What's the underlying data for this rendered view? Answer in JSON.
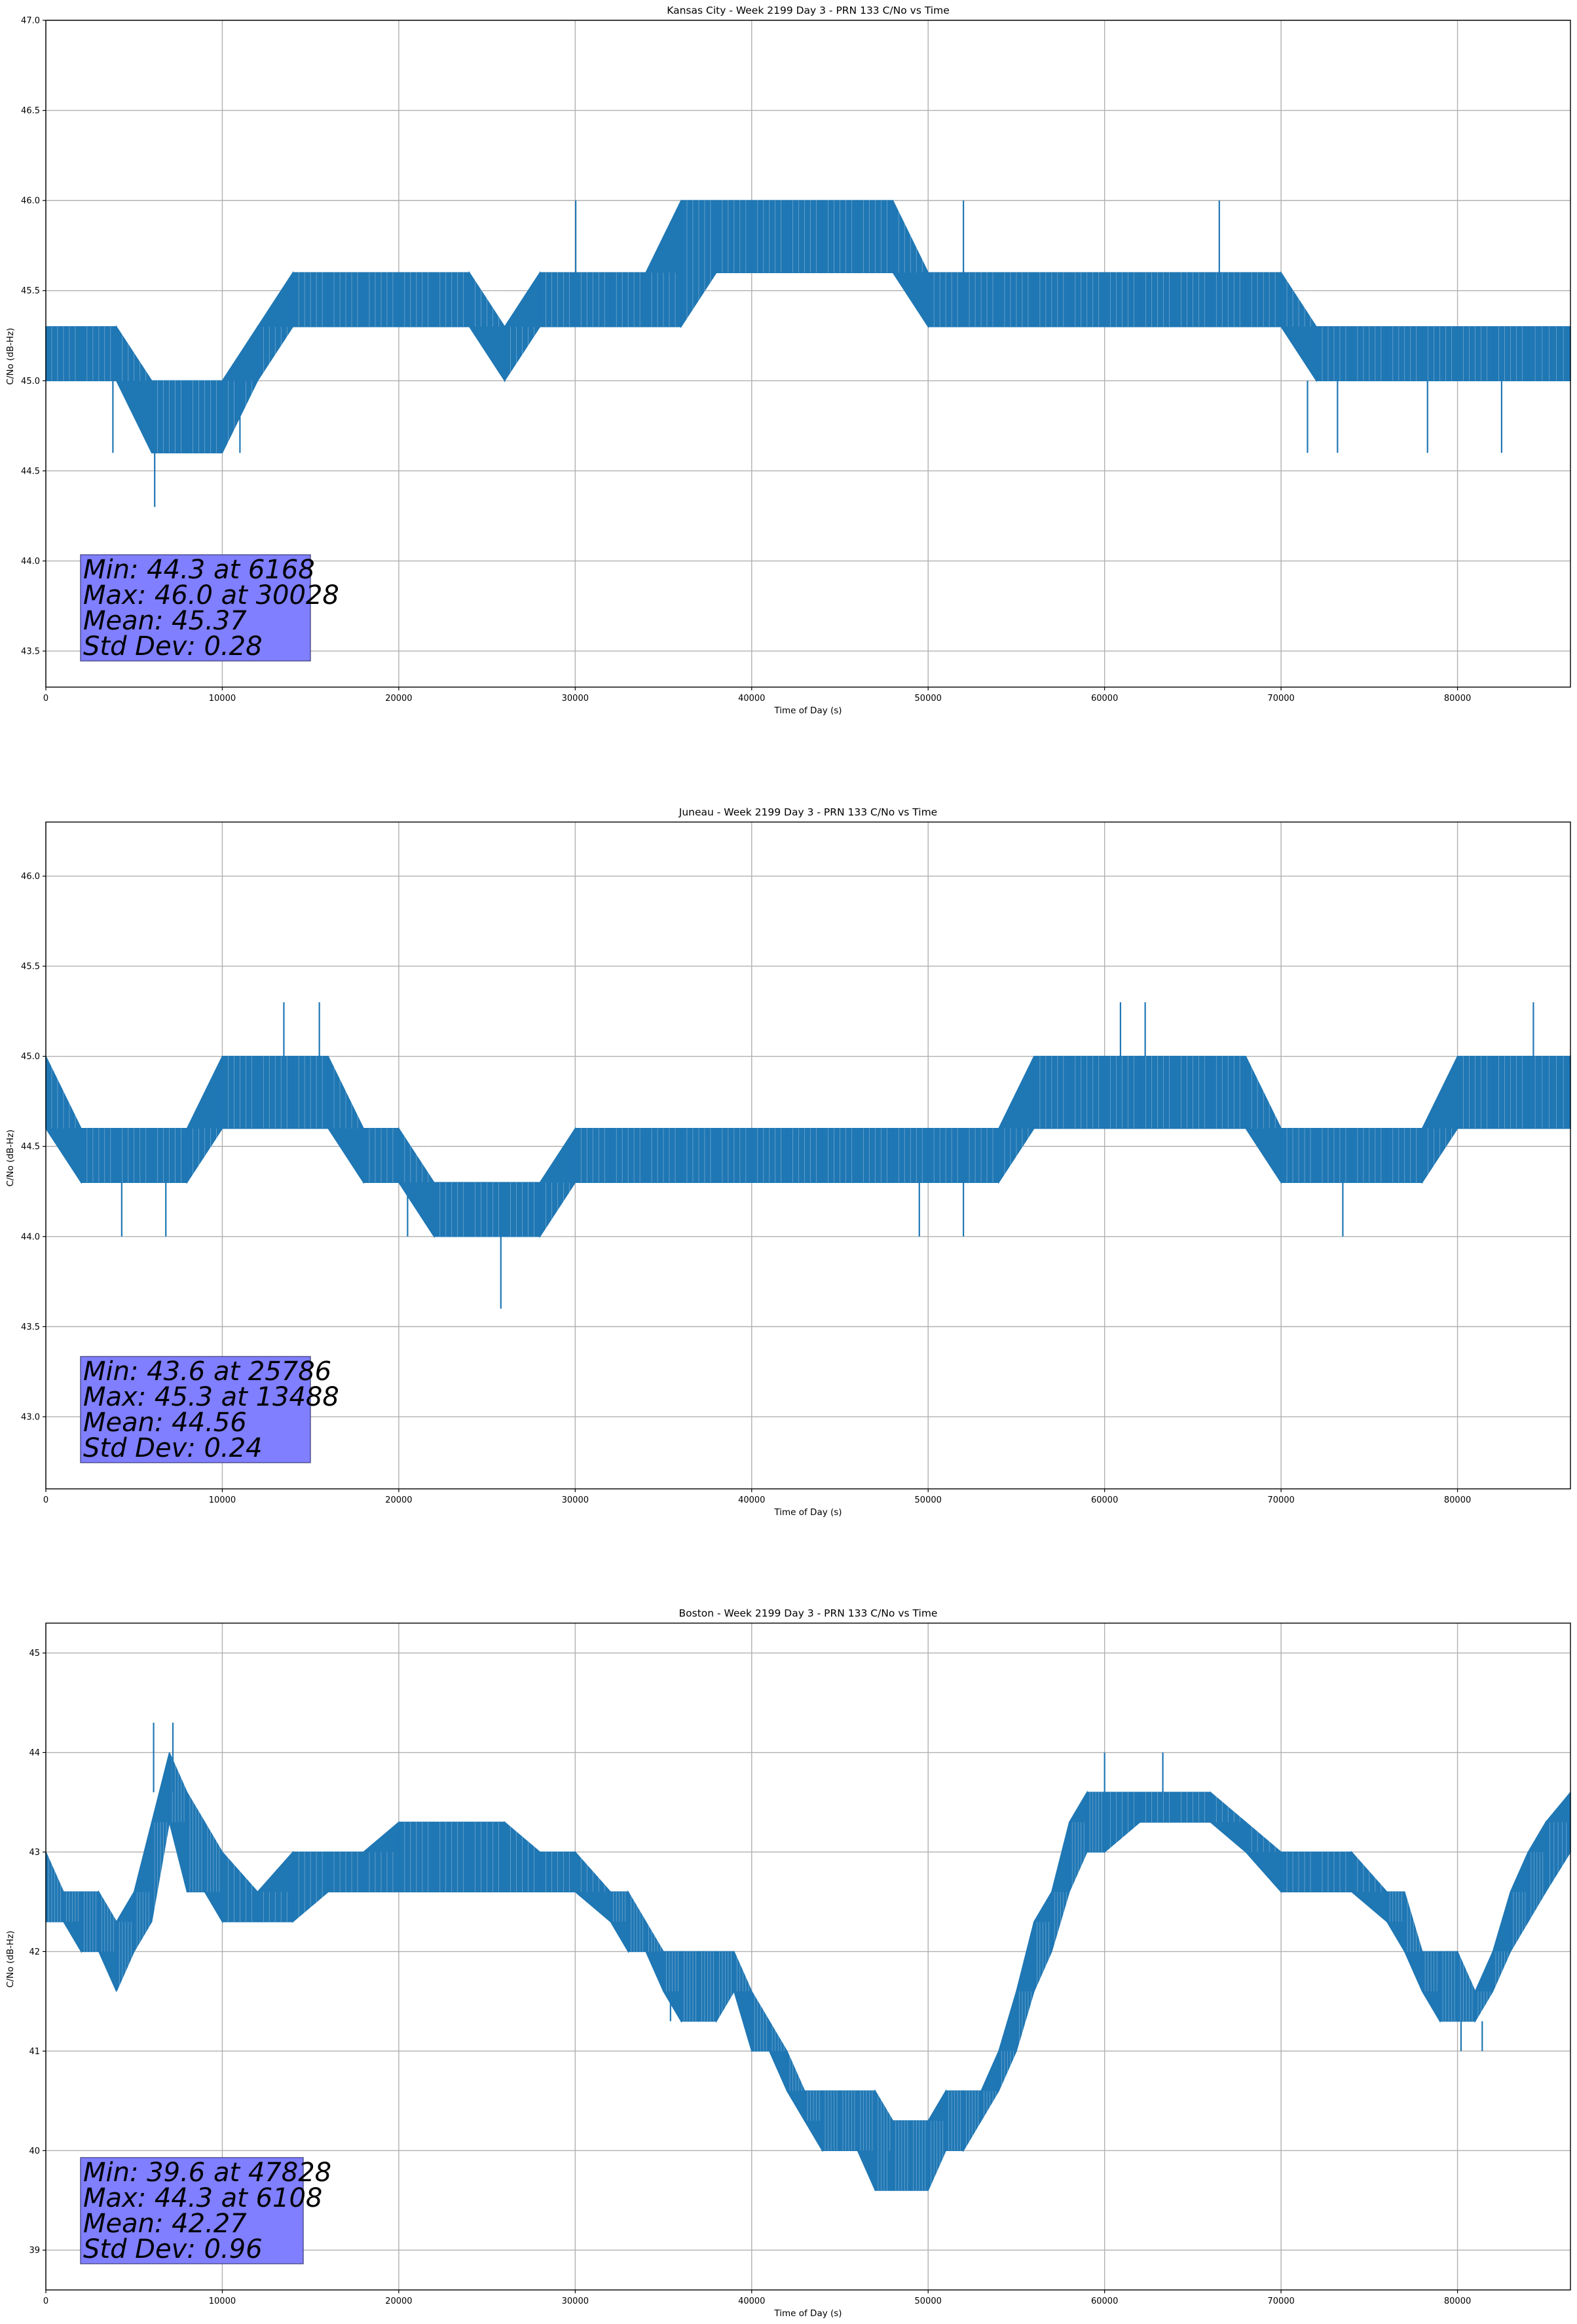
{
  "chart_data": [
    {
      "type": "line",
      "title": "Kansas City - Week 2199 Day 3 - PRN 133 C/No vs Time",
      "xlabel": "Time of Day (s)",
      "ylabel": "C/No (dB-Hz)",
      "xlim": [
        0,
        86400
      ],
      "ylim": [
        43.3,
        47.0
      ],
      "xticks": [
        0,
        10000,
        20000,
        30000,
        40000,
        50000,
        60000,
        70000,
        80000
      ],
      "yticks": [
        "43.5",
        "44.0",
        "44.5",
        "45.0",
        "45.5",
        "46.0",
        "46.5",
        "47.0"
      ],
      "grid": true,
      "color": "#1f77b4",
      "series": [
        {
          "name": "C/No",
          "x": [
            0,
            2000,
            4000,
            6000,
            8000,
            10000,
            12000,
            14000,
            16000,
            18000,
            20000,
            22000,
            24000,
            26000,
            28000,
            30000,
            32000,
            34000,
            36000,
            38000,
            40000,
            42000,
            44000,
            46000,
            48000,
            50000,
            52000,
            54000,
            56000,
            58000,
            60000,
            62000,
            64000,
            66000,
            68000,
            70000,
            72000,
            74000,
            76000,
            78000,
            80000,
            82000,
            84000,
            86400
          ],
          "base": [
            45.0,
            45.0,
            45.0,
            44.6,
            44.6,
            44.6,
            45.0,
            45.3,
            45.3,
            45.3,
            45.3,
            45.3,
            45.3,
            45.0,
            45.3,
            45.3,
            45.3,
            45.3,
            45.3,
            45.6,
            45.6,
            45.6,
            45.6,
            45.6,
            45.6,
            45.3,
            45.3,
            45.3,
            45.3,
            45.3,
            45.3,
            45.3,
            45.3,
            45.3,
            45.3,
            45.3,
            45.0,
            45.0,
            45.0,
            45.0,
            45.0,
            45.0,
            45.0,
            45.0
          ],
          "top": [
            45.3,
            45.3,
            45.3,
            45.0,
            45.0,
            45.0,
            45.3,
            45.6,
            45.6,
            45.6,
            45.6,
            45.6,
            45.6,
            45.3,
            45.6,
            45.6,
            45.6,
            45.6,
            46.0,
            46.0,
            46.0,
            46.0,
            46.0,
            46.0,
            46.0,
            45.6,
            45.6,
            45.6,
            45.6,
            45.6,
            45.6,
            45.6,
            45.6,
            45.6,
            45.6,
            45.6,
            45.3,
            45.3,
            45.3,
            45.3,
            45.3,
            45.3,
            45.3,
            45.3
          ]
        }
      ],
      "spikes": [
        {
          "x": 6168,
          "low": 44.3,
          "high": 44.6
        },
        {
          "x": 3800,
          "low": 44.6,
          "high": 45.0
        },
        {
          "x": 11000,
          "low": 44.6,
          "high": 45.0
        },
        {
          "x": 30028,
          "low": 45.6,
          "high": 46.0
        },
        {
          "x": 52000,
          "low": 45.6,
          "high": 46.0
        },
        {
          "x": 66500,
          "low": 45.6,
          "high": 46.0
        },
        {
          "x": 71500,
          "low": 44.6,
          "high": 45.0
        },
        {
          "x": 73200,
          "low": 44.6,
          "high": 45.0
        },
        {
          "x": 78300,
          "low": 44.6,
          "high": 45.0
        },
        {
          "x": 82500,
          "low": 44.6,
          "high": 45.0
        }
      ],
      "stats": {
        "min": "Min: 44.3 at 6168",
        "max": "Max: 46.0 at 30028",
        "mean": "Mean: 45.37",
        "std": "Std Dev: 0.28"
      }
    },
    {
      "type": "line",
      "title": "Juneau - Week 2199 Day 3 - PRN 133 C/No vs Time",
      "xlabel": "Time of Day (s)",
      "ylabel": "C/No (dB-Hz)",
      "xlim": [
        0,
        86400
      ],
      "ylim": [
        42.6,
        46.3
      ],
      "xticks": [
        0,
        10000,
        20000,
        30000,
        40000,
        50000,
        60000,
        70000,
        80000
      ],
      "yticks": [
        "43.0",
        "43.5",
        "44.0",
        "44.5",
        "45.0",
        "45.5",
        "46.0"
      ],
      "grid": true,
      "color": "#1f77b4",
      "series": [
        {
          "name": "C/No",
          "x": [
            0,
            2000,
            4000,
            6000,
            8000,
            10000,
            12000,
            14000,
            16000,
            18000,
            20000,
            22000,
            24000,
            26000,
            28000,
            30000,
            32000,
            34000,
            36000,
            38000,
            40000,
            42000,
            44000,
            46000,
            48000,
            50000,
            52000,
            54000,
            56000,
            58000,
            60000,
            62000,
            64000,
            66000,
            68000,
            70000,
            72000,
            74000,
            76000,
            78000,
            80000,
            82000,
            84000,
            86400
          ],
          "base": [
            44.6,
            44.3,
            44.3,
            44.3,
            44.3,
            44.6,
            44.6,
            44.6,
            44.6,
            44.3,
            44.3,
            44.0,
            44.0,
            44.0,
            44.0,
            44.3,
            44.3,
            44.3,
            44.3,
            44.3,
            44.3,
            44.3,
            44.3,
            44.3,
            44.3,
            44.3,
            44.3,
            44.3,
            44.6,
            44.6,
            44.6,
            44.6,
            44.6,
            44.6,
            44.6,
            44.3,
            44.3,
            44.3,
            44.3,
            44.3,
            44.6,
            44.6,
            44.6,
            44.6
          ],
          "top": [
            45.0,
            44.6,
            44.6,
            44.6,
            44.6,
            45.0,
            45.0,
            45.0,
            45.0,
            44.6,
            44.6,
            44.3,
            44.3,
            44.3,
            44.3,
            44.6,
            44.6,
            44.6,
            44.6,
            44.6,
            44.6,
            44.6,
            44.6,
            44.6,
            44.6,
            44.6,
            44.6,
            44.6,
            45.0,
            45.0,
            45.0,
            45.0,
            45.0,
            45.0,
            45.0,
            44.6,
            44.6,
            44.6,
            44.6,
            44.6,
            45.0,
            45.0,
            45.0,
            45.0
          ]
        }
      ],
      "spikes": [
        {
          "x": 25786,
          "low": 43.6,
          "high": 44.0
        },
        {
          "x": 13488,
          "low": 45.0,
          "high": 45.3
        },
        {
          "x": 15500,
          "low": 45.0,
          "high": 45.3
        },
        {
          "x": 60900,
          "low": 45.0,
          "high": 45.3
        },
        {
          "x": 62300,
          "low": 45.0,
          "high": 45.3
        },
        {
          "x": 84300,
          "low": 45.0,
          "high": 45.3
        },
        {
          "x": 4300,
          "low": 44.0,
          "high": 44.3
        },
        {
          "x": 6800,
          "low": 44.0,
          "high": 44.3
        },
        {
          "x": 20500,
          "low": 44.0,
          "high": 44.3
        },
        {
          "x": 49500,
          "low": 44.0,
          "high": 44.3
        },
        {
          "x": 52000,
          "low": 44.0,
          "high": 44.3
        },
        {
          "x": 73500,
          "low": 44.0,
          "high": 44.3
        }
      ],
      "stats": {
        "min": "Min: 43.6 at 25786",
        "max": "Max: 45.3 at 13488",
        "mean": "Mean: 44.56",
        "std": "Std Dev: 0.24"
      }
    },
    {
      "type": "line",
      "title": "Boston - Week 2199 Day 3 - PRN 133 C/No vs Time",
      "xlabel": "Time of Day (s)",
      "ylabel": "C/No (dB-Hz)",
      "xlim": [
        0,
        86400
      ],
      "ylim": [
        38.6,
        45.3
      ],
      "xticks": [
        0,
        10000,
        20000,
        30000,
        40000,
        50000,
        60000,
        70000,
        80000
      ],
      "yticks": [
        "39",
        "40",
        "41",
        "42",
        "43",
        "44",
        "45"
      ],
      "grid": true,
      "color": "#1f77b4",
      "series": [
        {
          "name": "C/No",
          "x": [
            0,
            1000,
            2000,
            3000,
            4000,
            5000,
            6000,
            7000,
            8000,
            9000,
            10000,
            12000,
            14000,
            16000,
            18000,
            20000,
            22000,
            24000,
            26000,
            28000,
            30000,
            32000,
            33000,
            34000,
            35000,
            36000,
            37000,
            38000,
            39000,
            40000,
            41000,
            42000,
            43000,
            44000,
            45000,
            46000,
            47000,
            48000,
            49000,
            50000,
            51000,
            52000,
            53000,
            54000,
            55000,
            56000,
            57000,
            58000,
            59000,
            60000,
            62000,
            64000,
            66000,
            68000,
            70000,
            72000,
            74000,
            76000,
            77000,
            78000,
            79000,
            80000,
            81000,
            82000,
            83000,
            84000,
            85000,
            86400
          ],
          "base": [
            42.3,
            42.3,
            42.0,
            42.0,
            41.6,
            42.0,
            42.3,
            43.3,
            42.6,
            42.6,
            42.3,
            42.3,
            42.3,
            42.6,
            42.6,
            42.6,
            42.6,
            42.6,
            42.6,
            42.6,
            42.6,
            42.3,
            42.0,
            42.0,
            41.6,
            41.3,
            41.3,
            41.3,
            41.6,
            41.0,
            41.0,
            40.6,
            40.3,
            40.0,
            40.0,
            40.0,
            39.6,
            39.6,
            39.6,
            39.6,
            40.0,
            40.0,
            40.3,
            40.6,
            41.0,
            41.6,
            42.0,
            42.6,
            43.0,
            43.0,
            43.3,
            43.3,
            43.3,
            43.0,
            42.6,
            42.6,
            42.6,
            42.3,
            42.0,
            41.6,
            41.3,
            41.3,
            41.3,
            41.6,
            42.0,
            42.3,
            42.6,
            43.0
          ],
          "top": [
            43.0,
            42.6,
            42.6,
            42.6,
            42.3,
            42.6,
            43.3,
            44.0,
            43.6,
            43.3,
            43.0,
            42.6,
            43.0,
            43.0,
            43.0,
            43.3,
            43.3,
            43.3,
            43.3,
            43.0,
            43.0,
            42.6,
            42.6,
            42.3,
            42.0,
            42.0,
            42.0,
            42.0,
            42.0,
            41.6,
            41.3,
            41.0,
            40.6,
            40.6,
            40.6,
            40.6,
            40.6,
            40.3,
            40.3,
            40.3,
            40.6,
            40.6,
            40.6,
            41.0,
            41.6,
            42.3,
            42.6,
            43.3,
            43.6,
            43.6,
            43.6,
            43.6,
            43.6,
            43.3,
            43.0,
            43.0,
            43.0,
            42.6,
            42.6,
            42.0,
            42.0,
            42.0,
            41.6,
            42.0,
            42.6,
            43.0,
            43.3,
            43.6
          ]
        }
      ],
      "spikes": [
        {
          "x": 6108,
          "low": 43.6,
          "high": 44.3
        },
        {
          "x": 7200,
          "low": 43.6,
          "high": 44.3
        },
        {
          "x": 47828,
          "low": 39.6,
          "high": 40.0
        },
        {
          "x": 35400,
          "low": 41.3,
          "high": 41.6
        },
        {
          "x": 60000,
          "low": 43.6,
          "high": 44.0
        },
        {
          "x": 63300,
          "low": 43.6,
          "high": 44.0
        },
        {
          "x": 80200,
          "low": 41.0,
          "high": 41.3
        },
        {
          "x": 81400,
          "low": 41.0,
          "high": 41.3
        }
      ],
      "stats": {
        "min": "Min: 39.6 at 47828",
        "max": "Max: 44.3 at 6108",
        "mean": "Mean: 42.27",
        "std": "Std Dev: 0.96"
      }
    }
  ]
}
